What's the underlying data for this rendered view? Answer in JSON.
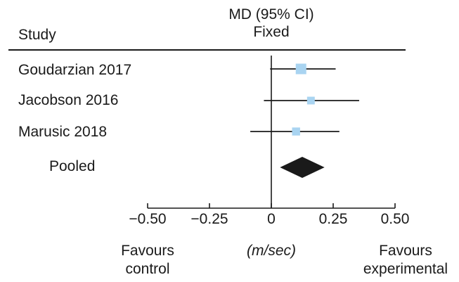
{
  "chart_data": {
    "type": "forest",
    "header": {
      "study_label": "Study",
      "effect_label": "MD (95% CI)",
      "model_label": "Fixed"
    },
    "studies": [
      {
        "name": "Goudarzian 2017",
        "mean": 0.12,
        "lower": -0.005,
        "upper": 0.26,
        "weight": 1.0
      },
      {
        "name": "Jacobson 2016",
        "mean": 0.16,
        "lower": -0.03,
        "upper": 0.355,
        "weight": 0.55
      },
      {
        "name": "Marusic  2018",
        "mean": 0.1,
        "lower": -0.085,
        "upper": 0.275,
        "weight": 0.6
      }
    ],
    "pooled": {
      "name": "Pooled",
      "mean": 0.125,
      "lower": 0.035,
      "upper": 0.215
    },
    "x_axis": {
      "range": [
        -0.5,
        0.5
      ],
      "ticks": [
        -0.5,
        -0.25,
        0,
        0.25,
        0.5
      ],
      "tick_labels": [
        "−0.50",
        "−0.25",
        "0",
        "0.25",
        "0.50"
      ],
      "unit_label": "(m/sec)"
    },
    "favours_left": [
      "Favours",
      "control"
    ],
    "favours_right": [
      "Favours",
      "experimental"
    ],
    "colors": {
      "study_marker": "#a9d4f1",
      "pooled_diamond": "#1a1a1a",
      "lines": "#1a1a1a"
    }
  }
}
